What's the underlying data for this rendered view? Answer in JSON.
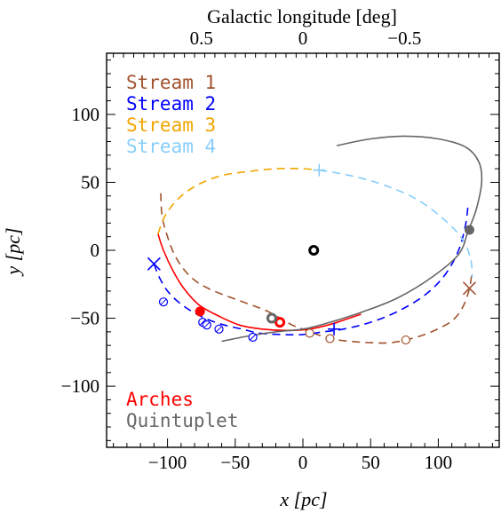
{
  "chart_data": {
    "type": "line",
    "xlabel": "x [pc]",
    "ylabel": "y [pc]",
    "top_axis_label": "Galactic longitude [deg]",
    "xlim": [
      -145,
      145
    ],
    "ylim": [
      -145,
      145
    ],
    "x_ticks": [
      -100,
      -50,
      0,
      50,
      100
    ],
    "x_tick_labels": [
      "−100",
      "−50",
      "0",
      "50",
      "100"
    ],
    "y_ticks": [
      -100,
      -50,
      0,
      50,
      100
    ],
    "y_tick_labels": [
      "−100",
      "−50",
      "0",
      "50",
      "100"
    ],
    "top_ticks": [
      0.5,
      0,
      -0.5
    ],
    "top_tick_labels": [
      "0.5",
      "0",
      "−0.5"
    ],
    "top_tick_positions_x": [
      -75,
      0,
      75
    ],
    "grid": false,
    "legend_position": "top-left",
    "series": [
      {
        "name": "Stream 1",
        "color": "#a0522d",
        "style": "dashed",
        "points": [
          [
            -105,
            42
          ],
          [
            -104,
            25
          ],
          [
            -100,
            10
          ],
          [
            -95,
            -3
          ],
          [
            -88,
            -14
          ],
          [
            -80,
            -22
          ],
          [
            -70,
            -28
          ],
          [
            -58,
            -33
          ],
          [
            -47,
            -37
          ],
          [
            -36,
            -41
          ],
          [
            -28,
            -44
          ],
          [
            -22,
            -47
          ],
          [
            -15,
            -51
          ],
          [
            -8,
            -55
          ],
          [
            0,
            -58
          ],
          [
            8,
            -61
          ],
          [
            20,
            -65
          ],
          [
            35,
            -67
          ],
          [
            50,
            -68
          ],
          [
            65,
            -68
          ],
          [
            80,
            -65
          ],
          [
            95,
            -60
          ],
          [
            110,
            -52
          ],
          [
            118,
            -42
          ],
          [
            123,
            -28
          ],
          [
            125,
            -15
          ]
        ],
        "markers": [
          {
            "x": 5,
            "y": -61,
            "shape": "open-circle"
          },
          {
            "x": 20,
            "y": -65,
            "shape": "open-circle"
          },
          {
            "x": 76,
            "y": -66,
            "shape": "open-circle"
          },
          {
            "x": 123,
            "y": -28,
            "shape": "x"
          }
        ]
      },
      {
        "name": "Stream 2",
        "color": "#0000ff",
        "style": "dashed",
        "points": [
          [
            -110,
            -10
          ],
          [
            -106,
            -20
          ],
          [
            -100,
            -30
          ],
          [
            -92,
            -38
          ],
          [
            -82,
            -45
          ],
          [
            -70,
            -51
          ],
          [
            -58,
            -55
          ],
          [
            -45,
            -58
          ],
          [
            -32,
            -61
          ],
          [
            -15,
            -62
          ],
          [
            0,
            -62
          ],
          [
            15,
            -60
          ],
          [
            30,
            -58
          ],
          [
            50,
            -53
          ],
          [
            70,
            -45
          ],
          [
            90,
            -33
          ],
          [
            105,
            -18
          ],
          [
            115,
            0
          ],
          [
            120,
            18
          ],
          [
            122,
            33
          ]
        ],
        "markers": [
          {
            "x": -110,
            "y": -10,
            "shape": "x"
          },
          {
            "x": -103,
            "y": -38,
            "shape": "circle-dot"
          },
          {
            "x": -74,
            "y": -53,
            "shape": "circle-dot"
          },
          {
            "x": -71,
            "y": -55,
            "shape": "circle-dot"
          },
          {
            "x": -62,
            "y": -58,
            "shape": "circle-dot"
          },
          {
            "x": -37,
            "y": -64,
            "shape": "circle-dot"
          },
          {
            "x": 23,
            "y": -58,
            "shape": "plus"
          }
        ]
      },
      {
        "name": "Stream 3",
        "color": "#f0a500",
        "style": "dashed",
        "points": [
          [
            -107,
            12
          ],
          [
            -102,
            25
          ],
          [
            -92,
            38
          ],
          [
            -78,
            48
          ],
          [
            -60,
            55
          ],
          [
            -40,
            58
          ],
          [
            -20,
            60
          ],
          [
            0,
            60
          ],
          [
            12,
            59
          ]
        ],
        "markers": []
      },
      {
        "name": "Stream 4",
        "color": "#87cefa",
        "style": "dashed",
        "points": [
          [
            12,
            59
          ],
          [
            35,
            55
          ],
          [
            60,
            48
          ],
          [
            85,
            37
          ],
          [
            105,
            22
          ],
          [
            118,
            8
          ],
          [
            124,
            -7
          ],
          [
            125,
            -20
          ]
        ],
        "markers": [
          {
            "x": 12,
            "y": 59,
            "shape": "plus"
          }
        ]
      },
      {
        "name": "Arches",
        "color": "#ff0000",
        "style": "solid",
        "points": [
          [
            -107,
            12
          ],
          [
            -103,
            0
          ],
          [
            -96,
            -15
          ],
          [
            -88,
            -28
          ],
          [
            -77,
            -40
          ],
          [
            -63,
            -48
          ],
          [
            -47,
            -55
          ],
          [
            -30,
            -58
          ],
          [
            -12,
            -59
          ],
          [
            5,
            -58
          ],
          [
            22,
            -54
          ],
          [
            43,
            -47
          ]
        ],
        "markers": [
          {
            "x": -76,
            "y": -45,
            "shape": "filled-circle"
          },
          {
            "x": -17,
            "y": -53,
            "shape": "open-circle-thick"
          }
        ]
      },
      {
        "name": "Quintuplet",
        "color": "#666666",
        "style": "solid",
        "points": [
          [
            -60,
            -67
          ],
          [
            -40,
            -63
          ],
          [
            -20,
            -60
          ],
          [
            0,
            -58
          ],
          [
            20,
            -53
          ],
          [
            45,
            -45
          ],
          [
            70,
            -35
          ],
          [
            95,
            -20
          ],
          [
            115,
            -3
          ],
          [
            122,
            14
          ],
          [
            128,
            30
          ],
          [
            132,
            50
          ],
          [
            130,
            65
          ],
          [
            120,
            76
          ],
          [
            100,
            82
          ],
          [
            75,
            84
          ],
          [
            50,
            82
          ],
          [
            25,
            77
          ]
        ],
        "markers": [
          {
            "x": 123,
            "y": 15,
            "shape": "filled-circle"
          },
          {
            "x": -23,
            "y": -50,
            "shape": "open-circle-thick"
          }
        ]
      }
    ],
    "annotations": [
      {
        "x": 8,
        "y": 0,
        "shape": "open-circle-thick",
        "color": "#000000"
      }
    ]
  },
  "legend": {
    "top": [
      {
        "label": "Stream 1",
        "color": "#a0522d"
      },
      {
        "label": "Stream 2",
        "color": "#0000ff"
      },
      {
        "label": "Stream 3",
        "color": "#f0a500"
      },
      {
        "label": "Stream 4",
        "color": "#87cefa"
      }
    ],
    "bottom": [
      {
        "label": "Arches",
        "color": "#ff0000"
      },
      {
        "label": "Quintuplet",
        "color": "#666666"
      }
    ]
  }
}
